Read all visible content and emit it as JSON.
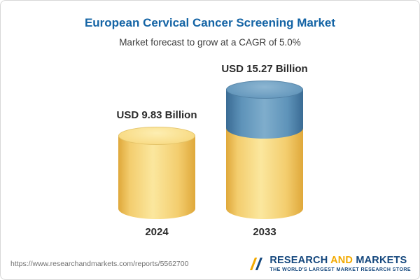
{
  "header": {
    "title": "European Cervical Cancer Screening Market",
    "subtitle": "Market forecast to grow at a CAGR of 5.0%"
  },
  "chart_data": {
    "type": "bar",
    "bar_style": "cylinder",
    "categories": [
      "2024",
      "2033"
    ],
    "values": [
      9.83,
      15.27
    ],
    "value_labels": [
      "USD 9.83 Billion",
      "USD 15.27 Billion"
    ],
    "unit": "USD Billion",
    "cagr_percent": 5.0,
    "title": "European Cervical Cancer Screening Market",
    "subtitle": "Market forecast to grow at a CAGR of 5.0%",
    "xlabel": "",
    "ylabel": "",
    "legend": "none",
    "grid": false,
    "colors": {
      "base_segment": "#F6D87E",
      "growth_segment": "#5E93B9",
      "title": "#1464A5"
    },
    "note": "2033 cylinder: lower yellow segment equals 2024 value, upper blue segment is forecast growth"
  },
  "footer": {
    "url": "https://www.researchandmarkets.com/reports/5562700",
    "logo": {
      "part1": "RESEARCH",
      "part2": "AND",
      "part3": "MARKETS",
      "tagline": "THE WORLD'S LARGEST MARKET RESEARCH STORE"
    }
  }
}
